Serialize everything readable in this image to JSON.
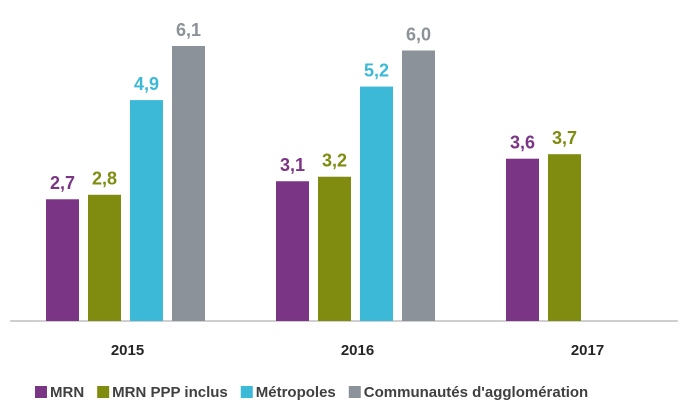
{
  "chart_data": {
    "type": "bar",
    "categories": [
      "2015",
      "2016",
      "2017"
    ],
    "series": [
      {
        "name": "MRN",
        "color": "#7b3585",
        "values": [
          2.7,
          3.1,
          3.6
        ],
        "value_labels": [
          "2,7",
          "3,1",
          "3,6"
        ]
      },
      {
        "name": "MRN PPP inclus",
        "color": "#7f8c0f",
        "values": [
          2.8,
          3.2,
          3.7
        ],
        "value_labels": [
          "2,8",
          "3,2",
          "3,7"
        ]
      },
      {
        "name": "Métropoles",
        "color": "#3bb9d6",
        "values": [
          4.9,
          5.2,
          null
        ],
        "value_labels": [
          "4,9",
          "5,2",
          null
        ]
      },
      {
        "name": "Communautés d'agglomération",
        "color": "#8c9299",
        "values": [
          6.1,
          6.0,
          null
        ],
        "value_labels": [
          "6,1",
          "6,0",
          null
        ]
      }
    ],
    "legend": "bottom"
  }
}
